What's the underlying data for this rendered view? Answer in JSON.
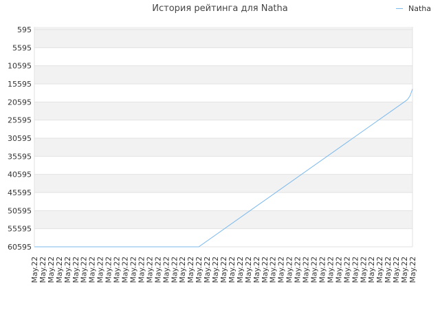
{
  "chart_data": {
    "type": "line",
    "title": "История рейтинга для Natha",
    "series": [
      {
        "name": "Natha",
        "color": "#79b8ee",
        "points": [
          [
            0,
            60595
          ],
          [
            20,
            60595
          ],
          [
            45,
            20595
          ],
          [
            45.4,
            19900
          ],
          [
            45.7,
            18900
          ],
          [
            46,
            17000
          ]
        ]
      }
    ],
    "yticks": [
      "595",
      "5595",
      "10595",
      "15595",
      "20595",
      "25595",
      "30595",
      "35595",
      "40595",
      "45595",
      "50595",
      "55595",
      "60595"
    ],
    "yvalues": [
      595,
      5595,
      10595,
      15595,
      20595,
      25595,
      30595,
      35595,
      40595,
      45595,
      50595,
      55595,
      60595
    ],
    "ylim": [
      595,
      60595
    ],
    "y_inverted": true,
    "xticks": [
      "May.22",
      "May.22",
      "May.22",
      "May.22",
      "May.22",
      "May.22",
      "May.22",
      "May.22",
      "May.22",
      "May.22",
      "May.22",
      "May.22",
      "May.22",
      "May.22",
      "May.22",
      "May.22",
      "May.22",
      "May.22",
      "May.22",
      "May.22",
      "May.22",
      "May.22",
      "May.22",
      "May.22",
      "May.22",
      "May.22",
      "May.22",
      "May.22",
      "May.22",
      "May.22",
      "May.22",
      "May.22",
      "May.22",
      "May.22",
      "May.22",
      "May.22",
      "May.22",
      "May.22",
      "May.22",
      "May.22",
      "May.22",
      "May.22",
      "May.22",
      "May.22",
      "May.22",
      "May.22",
      "May.22"
    ],
    "xlim": [
      0,
      46
    ],
    "grid": true,
    "legend_position": "top-right",
    "band_colors": [
      "#f2f2f2",
      "#ffffff"
    ]
  }
}
